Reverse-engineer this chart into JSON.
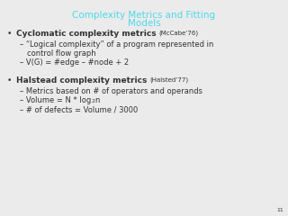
{
  "title_line1": "Complexity Metrics and Fitting",
  "title_line2": "Models",
  "title_color": "#4dd9e8",
  "background_color": "#ebebeb",
  "text_color": "#333333",
  "slide_number": "11",
  "title_fontsize": 7.5,
  "bullet_fontsize": 6.5,
  "cite_fontsize": 5.0,
  "sub_fontsize": 6.0,
  "items": [
    {
      "type": "bullet",
      "main": "Cyclomatic complexity metrics ",
      "cite": "(McCabe’76)"
    },
    {
      "type": "sub1",
      "text": "– “Logical complexity” of a program represented in"
    },
    {
      "type": "sub1cont",
      "text": "control flow graph"
    },
    {
      "type": "sub1",
      "text": "– V(G) = #edge – #node + 2"
    },
    {
      "type": "gap"
    },
    {
      "type": "bullet",
      "main": "Halstead complexity metrics ",
      "cite": "(Halsted’77)"
    },
    {
      "type": "sub1",
      "text": "– Metrics based on # of operators and operands"
    },
    {
      "type": "sub1_log",
      "before": "– Volume = N * log",
      "sub": "2",
      "after": "n"
    },
    {
      "type": "sub1",
      "text": "– # of defects = Volume / 3000"
    }
  ]
}
